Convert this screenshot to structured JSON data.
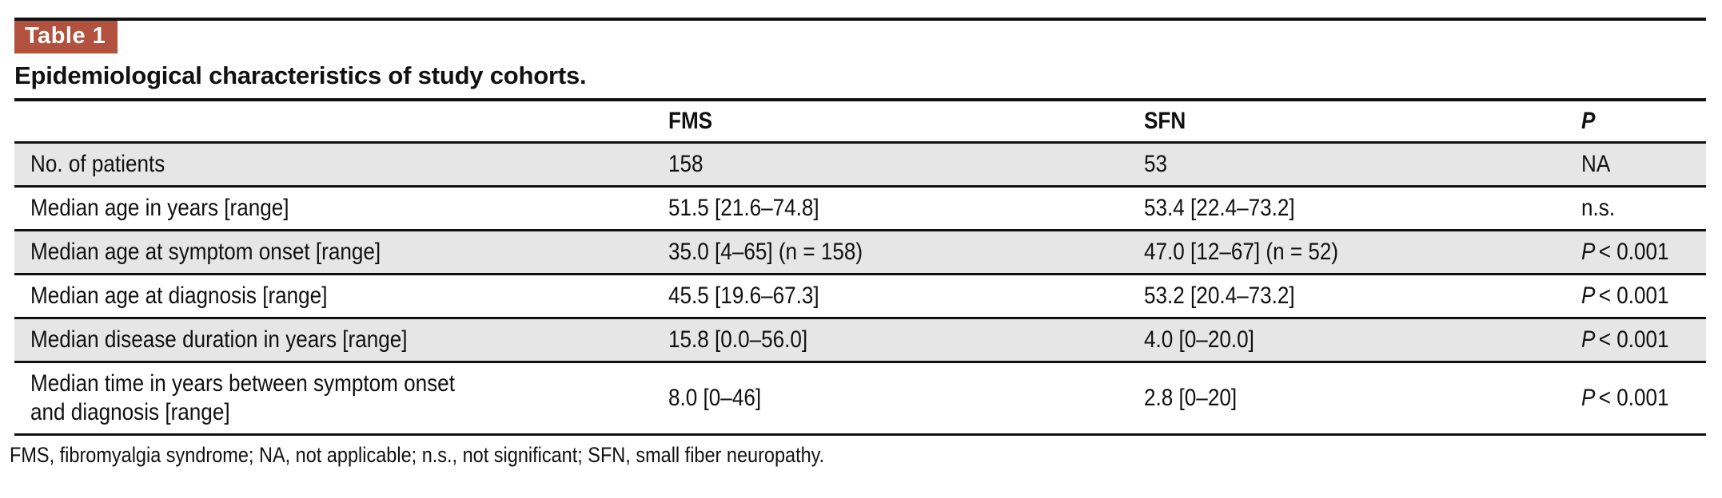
{
  "badge": {
    "label": "Table 1",
    "background": "#b2513e",
    "text_color": "#ffffff"
  },
  "title": "Epidemiological characteristics of study cohorts.",
  "table": {
    "headers": {
      "rowlabel": "",
      "fms": "FMS",
      "sfn": "SFN",
      "p": "P"
    },
    "rows": [
      {
        "label": "No. of patients",
        "fms": "158",
        "sfn": "53",
        "p_prefix": "",
        "p_value": "NA"
      },
      {
        "label": "Median age in years [range]",
        "fms": "51.5 [21.6–74.8]",
        "sfn": "53.4 [22.4–73.2]",
        "p_prefix": "",
        "p_value": "n.s."
      },
      {
        "label": "Median age at symptom onset [range]",
        "fms": "35.0 [4–65] (n = 158)",
        "sfn": "47.0 [12–67] (n = 52)",
        "p_prefix": "P",
        "p_value": "< 0.001"
      },
      {
        "label": "Median age at diagnosis [range]",
        "fms": "45.5 [19.6–67.3]",
        "sfn": "53.2 [20.4–73.2]",
        "p_prefix": "P",
        "p_value": "< 0.001"
      },
      {
        "label": "Median disease duration in years [range]",
        "fms": "15.8 [0.0–56.0]",
        "sfn": "4.0 [0–20.0]",
        "p_prefix": "P",
        "p_value": "< 0.001"
      },
      {
        "label_line1": "Median time in years between symptom onset",
        "label_line2": "and diagnosis [range]",
        "fms": "8.0 [0–46]",
        "sfn": "2.8 [0–20]",
        "p_prefix": "P",
        "p_value": "< 0.001"
      }
    ]
  },
  "footnote": "FMS, fibromyalgia syndrome; NA, not applicable; n.s., not significant; SFN, small fiber neuropathy.",
  "colors": {
    "row_shade": "#e6e6e7",
    "rule": "#111111",
    "badge_red": "#b2513e"
  }
}
